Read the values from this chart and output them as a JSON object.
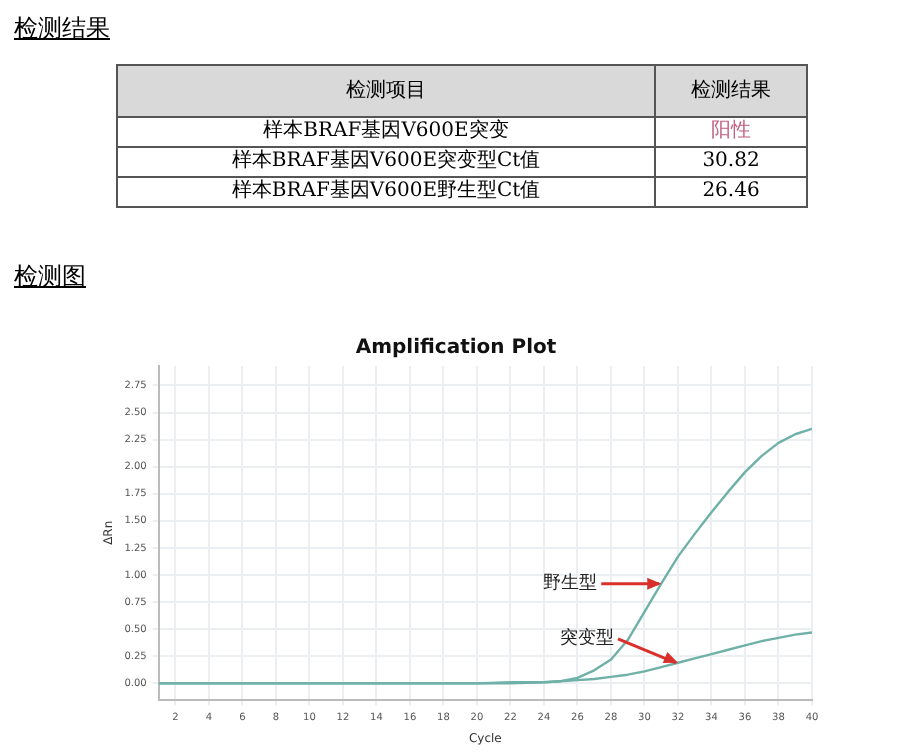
{
  "chart_data": {
    "type": "line",
    "title": "Amplification Plot",
    "xlabel": "Cycle",
    "ylabel": "ΔRn",
    "annotations": [
      "检测结果",
      "检测项目",
      "检测结果",
      "样本BRAF基因V600E突变",
      "阳性",
      "样本BRAF基因V600E突变型Ct值",
      "30.82",
      "样本BRAF基因V600E野生型Ct值",
      "26.46",
      "检测图",
      {
        "text": "野生型",
        "x": 31,
        "y": 0.92
      },
      {
        "text": "突变型",
        "x": 32,
        "y": 0.19
      }
    ],
    "x": [
      1,
      4,
      8,
      12,
      16,
      20,
      22,
      24,
      25,
      26,
      27,
      28,
      29,
      30,
      31,
      32,
      33,
      34,
      35,
      36,
      37,
      38,
      39,
      40
    ],
    "series": [
      {
        "color": "#6fb0a8",
        "values": [
          0,
          0,
          0,
          0,
          0,
          0,
          0.01,
          0.01,
          0.02,
          0.05,
          0.12,
          0.22,
          0.4,
          0.66,
          0.92,
          1.17,
          1.38,
          1.58,
          1.77,
          1.95,
          2.1,
          2.22,
          2.3,
          2.35
        ]
      },
      {
        "color": "#6fb0a8",
        "values": [
          0,
          0,
          0,
          0,
          0,
          0,
          0,
          0.01,
          0.02,
          0.03,
          0.04,
          0.06,
          0.08,
          0.11,
          0.15,
          0.19,
          0.23,
          0.27,
          0.31,
          0.35,
          0.39,
          0.42,
          0.45,
          0.47
        ]
      }
    ],
    "xlim": [
      1,
      40
    ],
    "xticks": [
      2,
      4,
      6,
      8,
      10,
      12,
      14,
      16,
      18,
      20,
      22,
      24,
      26,
      28,
      30,
      32,
      34,
      36,
      38,
      40
    ],
    "ylim": [
      -0.15,
      2.93
    ],
    "yticks": [
      {
        "value": 0,
        "label": "0.00"
      },
      {
        "value": 0.25,
        "label": "0.25"
      },
      {
        "value": 0.5,
        "label": "0.50"
      },
      {
        "value": 0.75,
        "label": "0.75"
      },
      {
        "value": 1,
        "label": "1.00"
      },
      {
        "value": 1.25,
        "label": "1.25"
      },
      {
        "value": 1.5,
        "label": "1.50"
      },
      {
        "value": 1.75,
        "label": "1.75"
      },
      {
        "value": 2,
        "label": "2.00"
      },
      {
        "value": 2.25,
        "label": "2.25"
      },
      {
        "value": 2.5,
        "label": "2.50"
      },
      {
        "value": 2.75,
        "label": "2.75"
      }
    ],
    "grid": true,
    "legend": false,
    "marker": "none",
    "line_style": "solid"
  }
}
